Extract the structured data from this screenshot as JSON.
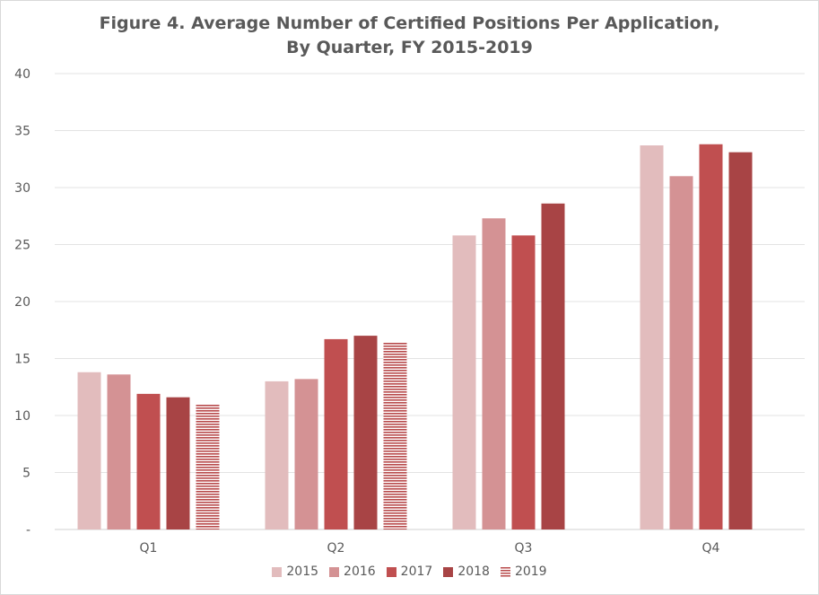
{
  "chart_data": {
    "type": "bar",
    "title": "Figure 4. Average Number of Certified Positions Per Application,",
    "subtitle": "By Quarter, FY 2015-2019",
    "categories": [
      "Q1",
      "Q2",
      "Q3",
      "Q4"
    ],
    "ylim": [
      0,
      40
    ],
    "yticks": [
      {
        "value": 0,
        "label": "-"
      },
      {
        "value": 5,
        "label": "5"
      },
      {
        "value": 10,
        "label": "10"
      },
      {
        "value": 15,
        "label": "15"
      },
      {
        "value": 20,
        "label": "20"
      },
      {
        "value": 25,
        "label": "25"
      },
      {
        "value": 30,
        "label": "30"
      },
      {
        "value": 35,
        "label": "35"
      },
      {
        "value": 40,
        "label": "40"
      }
    ],
    "grid": true,
    "legend_position": "bottom",
    "series": [
      {
        "name": "2015",
        "color": "#e2bcbd",
        "pattern": "solid",
        "values": [
          13.8,
          13.0,
          25.8,
          33.7
        ]
      },
      {
        "name": "2016",
        "color": "#d49294",
        "pattern": "solid",
        "values": [
          13.6,
          13.2,
          27.3,
          31.0
        ]
      },
      {
        "name": "2017",
        "color": "#c04f50",
        "pattern": "solid",
        "values": [
          11.9,
          16.7,
          25.8,
          33.8
        ]
      },
      {
        "name": "2018",
        "color": "#a84445",
        "pattern": "solid",
        "values": [
          11.6,
          17.0,
          28.6,
          33.1
        ]
      },
      {
        "name": "2019",
        "color": "#b84a4b",
        "pattern": "horizontal",
        "values": [
          11.0,
          16.4,
          null,
          null
        ]
      }
    ]
  }
}
